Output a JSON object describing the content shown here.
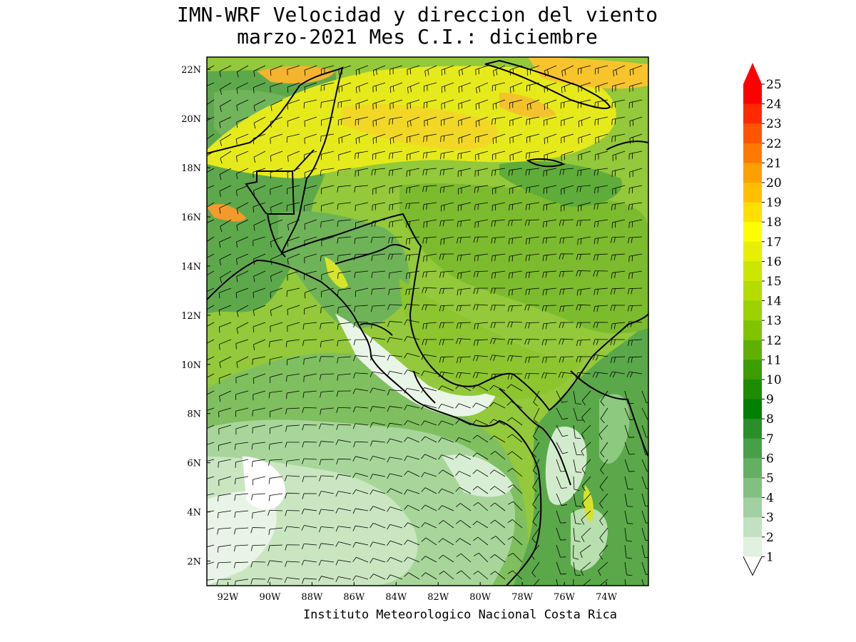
{
  "title": {
    "line1": "IMN-WRF Velocidad y direccion del viento",
    "line2": "marzo-2021 Mes C.I.: diciembre"
  },
  "footer": "Instituto Meteorologico Nacional Costa Rica",
  "map": {
    "lat_range": [
      1,
      22.5
    ],
    "lon_range": [
      -93,
      -72
    ],
    "lat_ticks": [
      "22N",
      "20N",
      "18N",
      "16N",
      "14N",
      "12N",
      "10N",
      "8N",
      "6N",
      "4N",
      "2N"
    ],
    "lat_values": [
      22,
      20,
      18,
      16,
      14,
      12,
      10,
      8,
      6,
      4,
      2
    ],
    "lon_ticks": [
      "92W",
      "90W",
      "88W",
      "86W",
      "84W",
      "82W",
      "80W",
      "78W",
      "76W",
      "74W"
    ],
    "lon_values": [
      -92,
      -90,
      -88,
      -86,
      -84,
      -82,
      -80,
      -78,
      -76,
      -74
    ]
  },
  "colorbar": {
    "labels": [
      "25",
      "24",
      "23",
      "22",
      "21",
      "20",
      "19",
      "18",
      "17",
      "16",
      "15",
      "14",
      "13",
      "12",
      "11",
      "10",
      "9",
      "8",
      "7",
      "6",
      "5",
      "4",
      "3",
      "2",
      "1"
    ],
    "colors": [
      "#ff0000",
      "#ff2a00",
      "#ff5500",
      "#ff7a00",
      "#ff9f00",
      "#ffbf00",
      "#ffdf00",
      "#ffff00",
      "#e6f000",
      "#cde600",
      "#b4dc00",
      "#9bd200",
      "#82c300",
      "#5fb000",
      "#3c9c00",
      "#1e8c00",
      "#008000",
      "#2a8f2a",
      "#47a047",
      "#63b063",
      "#82c082",
      "#a2d0a2",
      "#c2e0c2",
      "#e2f0e2"
    ],
    "arrow_color": "#ff0000"
  }
}
